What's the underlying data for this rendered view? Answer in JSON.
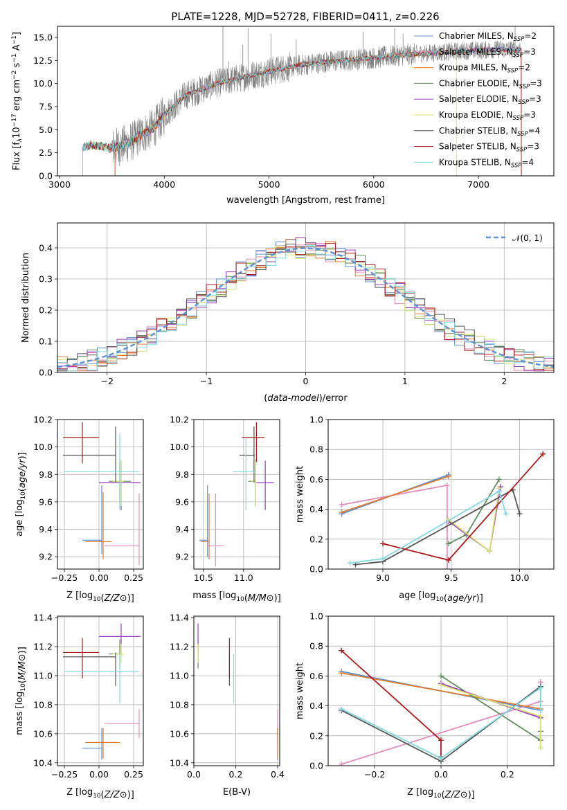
{
  "title": "PLATE=1228, MJD=52728, FIBERID=0411, z=0.226",
  "models": [
    {
      "name": "Chabrier MILES, N_SSP=2",
      "label": "Chabrier MILES, N",
      "sub": "SSP",
      "eq": "=2",
      "color": "#5b8fd6"
    },
    {
      "name": "Salpeter MILES, N_SSP=3",
      "label": "Salpeter MILES, N",
      "sub": "SSP",
      "eq": "=3",
      "color": "#e48bbb"
    },
    {
      "name": "Kroupa MILES, N_SSP=2",
      "label": "Kroupa MILES, N",
      "sub": "SSP",
      "eq": "=2",
      "color": "#e27c2c"
    },
    {
      "name": "Chabrier ELODIE, N_SSP=3",
      "label": "Chabrier ELODIE, N",
      "sub": "SSP",
      "eq": "=3",
      "color": "#5f8c5a"
    },
    {
      "name": "Salpeter ELODIE, N_SSP=3",
      "label": "Salpeter ELODIE, N",
      "sub": "SSP",
      "eq": "=3",
      "color": "#9a3ac6"
    },
    {
      "name": "Kroupa ELODIE, N_SSP=3",
      "label": "Kroupa ELODIE, N",
      "sub": "SSP",
      "eq": "=3",
      "color": "#d8e26a"
    },
    {
      "name": "Chabrier STELIB, N_SSP=4",
      "label": "Chabrier STELIB, N",
      "sub": "SSP",
      "eq": "=4",
      "color": "#555555"
    },
    {
      "name": "Salpeter STELIB, N_SSP=3",
      "label": "Salpeter STELIB, N",
      "sub": "SSP",
      "eq": "=3",
      "color": "#b01818"
    },
    {
      "name": "Kroupa STELIB, N_SSP=4",
      "label": "Kroupa STELIB, N",
      "sub": "SSP",
      "eq": "=4",
      "color": "#7fd9e0"
    }
  ],
  "chart_data": [
    {
      "id": "spectrum",
      "type": "line",
      "title": "PLATE=1228, MJD=52728, FIBERID=0411, z=0.226",
      "xlabel": "wavelength [Angstrom, rest frame]",
      "ylabel_parts": [
        "Flux [f",
        "λ",
        "10",
        "−17",
        " erg cm",
        "−2",
        " s",
        "−1",
        " A",
        "−1",
        "]"
      ],
      "xlim": [
        2980,
        7720
      ],
      "ylim": [
        0,
        16.2
      ],
      "xticks": [
        3000,
        4000,
        5000,
        6000,
        7000
      ],
      "yticks": [
        0.0,
        2.5,
        5.0,
        7.5,
        10.0,
        12.5,
        15.0
      ],
      "ytick_labels": [
        "0.0",
        "2.5",
        "5.0",
        "7.5",
        "10.0",
        "12.5",
        "15.0"
      ],
      "data_color": "#808080",
      "continuum_model": {
        "x": [
          3220,
          3300,
          3400,
          3500,
          3600,
          3700,
          3800,
          3900,
          4000,
          4200,
          4500,
          4800,
          5000,
          5300,
          5600,
          6000,
          6400,
          6800,
          7200,
          7400
        ],
        "y": [
          3.1,
          3.3,
          3.2,
          3.0,
          3.3,
          3.8,
          4.6,
          5.2,
          6.6,
          8.7,
          10.0,
          10.8,
          11.3,
          12.0,
          12.4,
          12.8,
          13.2,
          13.5,
          13.7,
          13.7
        ]
      },
      "spikes": [
        {
          "x": 4560,
          "y": 16.2
        },
        {
          "x": 4615,
          "y": 12.4
        },
        {
          "x": 4750,
          "y": 14.2
        },
        {
          "x": 4800,
          "y": 16.0
        },
        {
          "x": 5020,
          "y": 15.4
        },
        {
          "x": 5260,
          "y": 14.8
        },
        {
          "x": 5900,
          "y": 15.6
        },
        {
          "x": 6200,
          "y": 16.0
        },
        {
          "x": 6280,
          "y": 15.4
        },
        {
          "x": 7350,
          "y": 16.2
        }
      ],
      "model_end_x": {
        "Kroupa ELODIE, N_SSP=3": 6790,
        "Salpeter STELIB, N_SSP=3": 7410,
        "Chabrier STELIB, N_SSP=4": 7410
      },
      "model_start_x": {
        "Salpeter MILES, N_SSP=3": 3530,
        "Kroupa MILES, N_SSP=2": 3530,
        "Chabrier MILES, N_SSP=2": 3530
      }
    },
    {
      "id": "residuals",
      "type": "step",
      "xlabel": "(data-model)/error",
      "ylabel": "Normed distribution",
      "xlim": [
        -2.5,
        2.5
      ],
      "ylim": [
        0,
        0.48
      ],
      "xticks": [
        -2,
        -1,
        0,
        1,
        2
      ],
      "xtick_labels": [
        "−2",
        "−1",
        "0",
        "1",
        "2"
      ],
      "yticks": [
        0.0,
        0.1,
        0.2,
        0.3,
        0.4
      ],
      "ytick_labels": [
        "0.0",
        "0.1",
        "0.2",
        "0.3",
        "0.4"
      ],
      "normal_label": "𝒩(0, 1)",
      "normal_color": "#5b8fd6",
      "bins": 50
    },
    {
      "id": "age_vs_Z",
      "type": "errorbar",
      "xlabel": "Z [log10(Z/Z⊙)]",
      "ylabel": "age  [log10(age/yr)]",
      "xlim": [
        -0.3,
        0.32
      ],
      "ylim": [
        9.11,
        10.2
      ],
      "xticks": [
        -0.25,
        0.0,
        0.25
      ],
      "xtick_labels": [
        "−0.25",
        "0.00",
        "0.25"
      ],
      "yticks": [
        9.2,
        9.4,
        9.6,
        9.8,
        10.0,
        10.2
      ],
      "ytick_labels": [
        "9.2",
        "9.4",
        "9.6",
        "9.8",
        "10.0",
        "10.2"
      ],
      "points": [
        {
          "model": 0,
          "x": 0.02,
          "xerr": [
            0.14,
            0.0
          ],
          "y": 9.32,
          "yerr": [
            0.1,
            0.4
          ]
        },
        {
          "model": 1,
          "x": 0.29,
          "xerr": [
            0.25,
            0.0
          ],
          "y": 9.28,
          "yerr": [
            0.14,
            0.38
          ]
        },
        {
          "model": 2,
          "x": 0.03,
          "xerr": [
            0.13,
            0.06
          ],
          "y": 9.31,
          "yerr": [
            0.13,
            0.36
          ]
        },
        {
          "model": 3,
          "x": 0.15,
          "xerr": [
            0.08,
            0.08
          ],
          "y": 9.75,
          "yerr": [
            0.16,
            0.14
          ]
        },
        {
          "model": 4,
          "x": 0.16,
          "xerr": [
            0.16,
            0.14
          ],
          "y": 9.74,
          "yerr": [
            0.2,
            0.16
          ]
        },
        {
          "model": 5,
          "x": 0.16,
          "xerr": [
            0.06,
            0.02
          ],
          "y": 9.75,
          "yerr": [
            0.18,
            0.16
          ]
        },
        {
          "model": 6,
          "x": 0.12,
          "xerr": [
            0.38,
            0.0
          ],
          "y": 9.94,
          "yerr": [
            0.2,
            0.21
          ]
        },
        {
          "model": 7,
          "x": -0.12,
          "xerr": [
            0.14,
            0.12
          ],
          "y": 10.07,
          "yerr": [
            0.19,
            0.11
          ]
        },
        {
          "model": 8,
          "x": 0.15,
          "xerr": [
            0.4,
            0.14
          ],
          "y": 9.82,
          "yerr": [
            0.28,
            0.28
          ]
        }
      ]
    },
    {
      "id": "age_vs_mass",
      "type": "errorbar",
      "xlabel": "mass [log10(M/M⊙)]",
      "ylabel": "",
      "xlim": [
        10.38,
        11.45
      ],
      "ylim": [
        9.11,
        10.2
      ],
      "xticks": [
        10.5,
        11.0
      ],
      "xtick_labels": [
        "10.5",
        "11.0"
      ],
      "yticks": [
        9.2,
        9.4,
        9.6,
        9.8,
        10.0,
        10.2
      ],
      "ytick_labels": [
        "9.2",
        "9.4",
        "9.6",
        "9.8",
        "10.0",
        "10.2"
      ],
      "points": [
        {
          "model": 0,
          "x": 10.55,
          "xerr": [
            0.1,
            0.0
          ],
          "y": 9.32,
          "yerr": [
            0.12,
            0.4
          ]
        },
        {
          "model": 1,
          "x": 10.65,
          "xerr": [
            0.1,
            0.1
          ],
          "y": 9.28,
          "yerr": [
            0.15,
            0.38
          ]
        },
        {
          "model": 2,
          "x": 10.57,
          "xerr": [
            0.1,
            0.0
          ],
          "y": 9.31,
          "yerr": [
            0.13,
            0.35
          ]
        },
        {
          "model": 3,
          "x": 11.15,
          "xerr": [
            0.09,
            0.0
          ],
          "y": 9.75,
          "yerr": [
            0.18,
            0.15
          ]
        },
        {
          "model": 4,
          "x": 11.27,
          "xerr": [
            0.12,
            0.11
          ],
          "y": 9.74,
          "yerr": [
            0.2,
            0.16
          ]
        },
        {
          "model": 5,
          "x": 11.15,
          "xerr": [
            0.05,
            0.0
          ],
          "y": 9.75,
          "yerr": [
            0.18,
            0.16
          ]
        },
        {
          "model": 6,
          "x": 11.13,
          "xerr": [
            0.18,
            0.01
          ],
          "y": 9.94,
          "yerr": [
            0.2,
            0.21
          ]
        },
        {
          "model": 7,
          "x": 11.16,
          "xerr": [
            0.18,
            0.1
          ],
          "y": 10.07,
          "yerr": [
            0.18,
            0.11
          ]
        },
        {
          "model": 8,
          "x": 11.03,
          "xerr": [
            0.16,
            0.13
          ],
          "y": 9.82,
          "yerr": [
            0.28,
            0.25
          ]
        }
      ]
    },
    {
      "id": "weight_vs_age",
      "type": "line",
      "xlabel": "age  [log10(age/yr)]",
      "ylabel": "mass weight",
      "xlim": [
        8.6,
        10.25
      ],
      "ylim": [
        0,
        1.0
      ],
      "xticks": [
        9.0,
        9.5,
        10.0
      ],
      "xtick_labels": [
        "9.0",
        "9.5",
        "10.0"
      ],
      "yticks": [
        0.0,
        0.2,
        0.4,
        0.6,
        0.8,
        1.0
      ],
      "ytick_labels": [
        "0.0",
        "0.2",
        "0.4",
        "0.6",
        "0.8",
        "1.0"
      ],
      "series": [
        {
          "model": 0,
          "x": [
            8.7,
            9.48
          ],
          "y": [
            0.37,
            0.63
          ]
        },
        {
          "model": 1,
          "x": [
            8.7,
            9.47,
            9.47
          ],
          "y": [
            0.43,
            0.56,
            0.0
          ]
        },
        {
          "model": 2,
          "x": [
            8.7,
            9.48
          ],
          "y": [
            0.38,
            0.62
          ]
        },
        {
          "model": 3,
          "x": [
            9.48,
            9.61,
            9.85
          ],
          "y": [
            0.17,
            0.23,
            0.6
          ]
        },
        {
          "model": 4,
          "x": [
            9.48,
            9.78,
            9.86
          ],
          "y": [
            0.32,
            0.12,
            0.55
          ]
        },
        {
          "model": 5,
          "x": [
            9.48,
            9.78,
            9.85
          ],
          "y": [
            0.33,
            0.12,
            0.54
          ]
        },
        {
          "model": 6,
          "x": [
            8.8,
            9.0,
            9.95,
            10.0
          ],
          "y": [
            0.03,
            0.05,
            0.53,
            0.37
          ]
        },
        {
          "model": 7,
          "x": [
            9.0,
            9.48,
            10.17
          ],
          "y": [
            0.17,
            0.06,
            0.77
          ]
        },
        {
          "model": 8,
          "x": [
            8.76,
            9.0,
            9.85,
            9.9
          ],
          "y": [
            0.04,
            0.07,
            0.52,
            0.37
          ]
        }
      ]
    },
    {
      "id": "mass_vs_Z",
      "type": "errorbar",
      "xlabel": "Z [log10(Z/Z⊙)]",
      "ylabel": "mass [log10(M/M⊙)]",
      "xlim": [
        -0.3,
        0.32
      ],
      "ylim": [
        10.38,
        11.41
      ],
      "xticks": [
        -0.25,
        0.0,
        0.25
      ],
      "xtick_labels": [
        "−0.25",
        "0.00",
        "0.25"
      ],
      "yticks": [
        10.4,
        10.6,
        10.8,
        11.0,
        11.2,
        11.4
      ],
      "ytick_labels": [
        "10.4",
        "10.6",
        "10.8",
        "11.0",
        "11.2",
        "11.4"
      ],
      "points": [
        {
          "model": 0,
          "x": 0.02,
          "xerr": [
            0.14,
            0.0
          ],
          "y": 10.5,
          "yerr": [
            0.08,
            0.14
          ]
        },
        {
          "model": 1,
          "x": 0.29,
          "xerr": [
            0.25,
            0.0
          ],
          "y": 10.67,
          "yerr": [
            0.1,
            0.1
          ]
        },
        {
          "model": 2,
          "x": 0.03,
          "xerr": [
            0.13,
            0.12
          ],
          "y": 10.54,
          "yerr": [
            0.11,
            0.1
          ]
        },
        {
          "model": 3,
          "x": 0.15,
          "xerr": [
            0.08,
            0.0
          ],
          "y": 11.15,
          "yerr": [
            0.1,
            0.1
          ]
        },
        {
          "model": 4,
          "x": 0.16,
          "xerr": [
            0.16,
            0.14
          ],
          "y": 11.27,
          "yerr": [
            0.12,
            0.09
          ]
        },
        {
          "model": 5,
          "x": 0.16,
          "xerr": [
            0.06,
            0.02
          ],
          "y": 11.15,
          "yerr": [
            0.06,
            0.07
          ]
        },
        {
          "model": 6,
          "x": 0.12,
          "xerr": [
            0.38,
            0.0
          ],
          "y": 11.13,
          "yerr": [
            0.2,
            0.03
          ]
        },
        {
          "model": 7,
          "x": -0.12,
          "xerr": [
            0.14,
            0.12
          ],
          "y": 11.16,
          "yerr": [
            0.18,
            0.1
          ]
        },
        {
          "model": 8,
          "x": 0.15,
          "xerr": [
            0.4,
            0.14
          ],
          "y": 11.03,
          "yerr": [
            0.22,
            0.12
          ]
        }
      ]
    },
    {
      "id": "mass_vs_ebv",
      "type": "errorbar",
      "xlabel": "E(B-V)",
      "ylabel": "",
      "xlim": [
        0.0,
        0.41
      ],
      "ylim": [
        10.38,
        11.41
      ],
      "xticks": [
        0.0,
        0.2,
        0.4
      ],
      "xtick_labels": [
        "0.0",
        "0.2",
        "0.4"
      ],
      "yticks": [
        10.4,
        10.6,
        10.8,
        11.0,
        11.2,
        11.4
      ],
      "ytick_labels": [
        "10.4",
        "10.6",
        "10.8",
        "11.0",
        "11.2",
        "11.4"
      ],
      "points": [
        {
          "model": 0,
          "x": 0.4,
          "xerr": [
            0,
            0
          ],
          "y": 10.5,
          "yerr": [
            0.08,
            0.14
          ]
        },
        {
          "model": 1,
          "x": 0.4,
          "xerr": [
            0,
            0
          ],
          "y": 10.67,
          "yerr": [
            0.1,
            0.1
          ]
        },
        {
          "model": 2,
          "x": 0.4,
          "xerr": [
            0,
            0
          ],
          "y": 10.54,
          "yerr": [
            0.11,
            0.1
          ]
        },
        {
          "model": 3,
          "x": 0.02,
          "xerr": [
            0,
            0
          ],
          "y": 11.15,
          "yerr": [
            0.1,
            0.1
          ]
        },
        {
          "model": 4,
          "x": 0.02,
          "xerr": [
            0,
            0
          ],
          "y": 11.27,
          "yerr": [
            0.12,
            0.09
          ]
        },
        {
          "model": 5,
          "x": 0.02,
          "xerr": [
            0,
            0
          ],
          "y": 11.15,
          "yerr": [
            0.06,
            0.07
          ]
        },
        {
          "model": 6,
          "x": 0.17,
          "xerr": [
            0,
            0
          ],
          "y": 11.13,
          "yerr": [
            0.2,
            0.03
          ]
        },
        {
          "model": 7,
          "x": 0.17,
          "xerr": [
            0,
            0
          ],
          "y": 11.16,
          "yerr": [
            0.18,
            0.1
          ]
        },
        {
          "model": 8,
          "x": 0.19,
          "xerr": [
            0,
            0
          ],
          "y": 11.03,
          "yerr": [
            0.22,
            0.12
          ]
        }
      ]
    },
    {
      "id": "weight_vs_Z",
      "type": "line",
      "xlabel": "Z [log10(Z/Z⊙)]",
      "ylabel": "mass weight",
      "xlim": [
        -0.34,
        0.34
      ],
      "ylim": [
        0,
        1.0
      ],
      "xticks": [
        -0.2,
        0.0,
        0.2
      ],
      "xtick_labels": [
        "−0.2",
        "0.0",
        "0.2"
      ],
      "yticks": [
        0.0,
        0.2,
        0.4,
        0.6,
        0.8,
        1.0
      ],
      "ytick_labels": [
        "0.0",
        "0.2",
        "0.4",
        "0.6",
        "0.8",
        "1.0"
      ],
      "series": [
        {
          "model": 0,
          "x": [
            -0.3,
            0.3
          ],
          "y": [
            0.63,
            0.37
          ]
        },
        {
          "model": 1,
          "x": [
            -0.3,
            0.3,
            0.3
          ],
          "y": [
            0.01,
            0.43,
            0.56
          ]
        },
        {
          "model": 2,
          "x": [
            -0.3,
            0.3
          ],
          "y": [
            0.62,
            0.38
          ]
        },
        {
          "model": 3,
          "x": [
            0.0,
            0.3,
            0.3
          ],
          "y": [
            0.6,
            0.17,
            0.23
          ]
        },
        {
          "model": 4,
          "x": [
            0.0,
            0.3
          ],
          "y": [
            0.55,
            0.32
          ]
        },
        {
          "model": 5,
          "x": [
            0.0,
            0.3,
            0.3
          ],
          "y": [
            0.54,
            0.33,
            0.12
          ]
        },
        {
          "model": 6,
          "x": [
            -0.3,
            0.0,
            0.3
          ],
          "y": [
            0.37,
            0.03,
            0.53
          ]
        },
        {
          "model": 7,
          "x": [
            -0.3,
            0.0,
            0.0
          ],
          "y": [
            0.77,
            0.17,
            0.06
          ]
        },
        {
          "model": 8,
          "x": [
            -0.3,
            0.0,
            0.3,
            0.3
          ],
          "y": [
            0.38,
            0.05,
            0.52,
            0.37
          ]
        }
      ]
    }
  ]
}
